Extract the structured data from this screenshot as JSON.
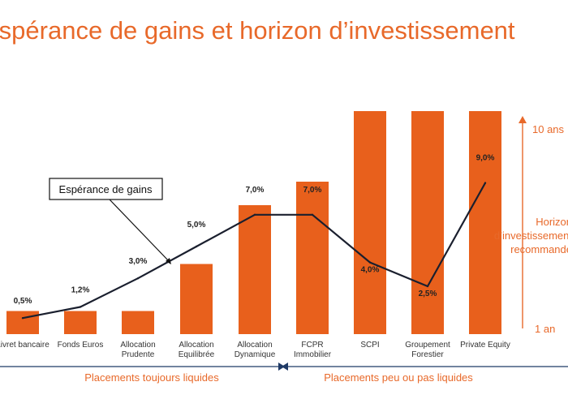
{
  "title": "Espérance de gains et horizon d’investissement",
  "chart_data": {
    "type": "bar",
    "categories": [
      [
        "Livret bancaire"
      ],
      [
        "Fonds Euros"
      ],
      [
        "Allocation",
        "Prudente"
      ],
      [
        "Allocation",
        "Equilibrée"
      ],
      [
        "Allocation",
        "Dynamique"
      ],
      [
        "FCPR",
        "Immobilier"
      ],
      [
        "SCPI"
      ],
      [
        "Groupement",
        "Forestier"
      ],
      [
        "Private Equity"
      ]
    ],
    "bar_series": {
      "name": "Horizon d’investissement recommandé",
      "values": [
        1.5,
        1.5,
        1.5,
        3.5,
        6.0,
        7.0,
        10.0,
        10.0,
        10.0
      ],
      "ylim": [
        1,
        10
      ],
      "ytick_labels": [
        "10 ans",
        "1 an"
      ],
      "color": "#e8601c"
    },
    "line_series": {
      "name": "Espérance de gains",
      "values": [
        0.5,
        1.2,
        3.0,
        5.0,
        7.0,
        7.0,
        4.0,
        2.5,
        9.0
      ],
      "labels": [
        "0,5%",
        "1,2%",
        "3,0%",
        "5,0%",
        "7,0%",
        "7,0%",
        "4,0%",
        "2,5%",
        "9,0%"
      ],
      "color": "#1a1f2e"
    },
    "groups": [
      {
        "label": "Placements toujours liquides",
        "from": 0,
        "to": 4
      },
      {
        "label": "Placements peu ou pas liquides",
        "from": 5,
        "to": 8
      }
    ],
    "right_axis_label": [
      "Horizon",
      "d’investissement",
      "recommandé"
    ],
    "callout": "Espérance de gains"
  }
}
